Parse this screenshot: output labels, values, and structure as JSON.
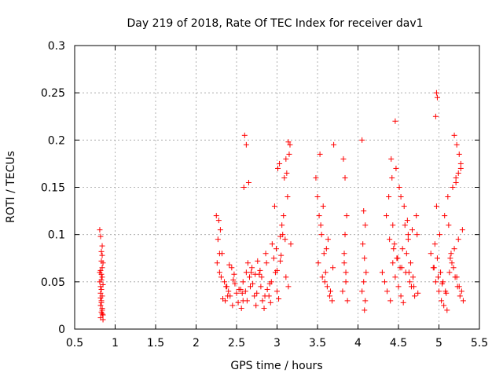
{
  "chart_data": {
    "type": "scatter",
    "title": "Day 219 of 2018, Rate Of TEC Index for receiver dav1",
    "xlabel": "GPS time / hours",
    "ylabel": "ROTI / TECUs",
    "xlim": [
      0.5,
      5.5
    ],
    "ylim": [
      0,
      0.3
    ],
    "xticks": [
      0.5,
      1,
      1.5,
      2,
      2.5,
      3,
      3.5,
      4,
      4.5,
      5,
      5.5
    ],
    "xtick_labels": [
      "0.5",
      "1",
      "1.5",
      "2",
      "2.5",
      "3",
      "3.5",
      "4",
      "4.5",
      "5",
      "5.5"
    ],
    "yticks": [
      0,
      0.05,
      0.1,
      0.15,
      0.2,
      0.25,
      0.3
    ],
    "ytick_labels": [
      "0",
      "0.05",
      "0.1",
      "0.15",
      "0.2",
      "0.25",
      "0.3"
    ],
    "grid": true,
    "marker": "+",
    "color": "#ff0000",
    "series": [
      {
        "name": "ROTI",
        "x": [
          0.81,
          0.82,
          0.83,
          0.84,
          0.85,
          0.82,
          0.83,
          0.84,
          0.81,
          0.85,
          0.83,
          0.82,
          0.84,
          0.83,
          0.82,
          0.84,
          0.83,
          0.85,
          0.82,
          0.84,
          0.83,
          0.81,
          0.84,
          0.82,
          0.83,
          0.85,
          0.84,
          0.83,
          0.82,
          0.84,
          2.25,
          2.28,
          2.3,
          2.27,
          2.32,
          2.26,
          2.29,
          2.31,
          2.35,
          2.38,
          2.4,
          2.42,
          2.36,
          2.45,
          2.44,
          2.48,
          2.5,
          2.52,
          2.47,
          2.55,
          2.58,
          2.56,
          2.6,
          2.62,
          2.59,
          2.64,
          2.66,
          2.61,
          2.63,
          2.68,
          2.7,
          2.72,
          2.74,
          2.69,
          2.76,
          2.78,
          2.8,
          2.75,
          2.82,
          2.84,
          2.86,
          2.81,
          2.88,
          2.9,
          2.92,
          2.87,
          2.94,
          2.96,
          2.98,
          2.93,
          3.0,
          3.02,
          3.04,
          2.99,
          3.06,
          3.08,
          3.1,
          3.05,
          3.12,
          3.14,
          3.16,
          3.11,
          3.13,
          3.09,
          3.15,
          3.01,
          3.03,
          2.97,
          2.91,
          2.85,
          2.79,
          2.73,
          2.67,
          2.57,
          2.53,
          2.46,
          2.41,
          2.37,
          2.33,
          2.29,
          2.62,
          2.65,
          2.58,
          2.39,
          3.07,
          3.17,
          3.0,
          3.04,
          3.11,
          3.14,
          3.48,
          3.5,
          3.52,
          3.55,
          3.58,
          3.6,
          3.62,
          3.65,
          3.68,
          3.7,
          3.53,
          3.57,
          3.63,
          3.51,
          3.59,
          3.66,
          3.54,
          3.61,
          3.69,
          3.56,
          3.82,
          3.84,
          3.86,
          3.83,
          3.85,
          3.81,
          3.87,
          3.84,
          3.83,
          3.85,
          4.05,
          4.07,
          4.09,
          4.06,
          4.08,
          4.1,
          4.07,
          4.05,
          4.09,
          4.08,
          4.3,
          4.33,
          4.36,
          4.4,
          4.43,
          4.46,
          4.5,
          4.53,
          4.56,
          4.6,
          4.63,
          4.66,
          4.7,
          4.73,
          4.35,
          4.38,
          4.42,
          4.45,
          4.48,
          4.52,
          4.55,
          4.58,
          4.62,
          4.65,
          4.68,
          4.72,
          4.41,
          4.47,
          4.51,
          4.57,
          4.61,
          4.67,
          4.39,
          4.44,
          4.49,
          4.54,
          4.59,
          4.64,
          4.69,
          4.74,
          4.46,
          4.53,
          4.43,
          4.62,
          4.9,
          4.93,
          4.96,
          5.0,
          5.03,
          5.06,
          5.1,
          5.13,
          5.16,
          5.2,
          5.23,
          5.26,
          5.3,
          4.95,
          4.98,
          5.02,
          5.05,
          5.08,
          5.12,
          5.15,
          5.18,
          5.22,
          5.25,
          5.28,
          4.97,
          5.01,
          5.07,
          5.11,
          5.17,
          5.21,
          5.27,
          4.94,
          4.99,
          5.04,
          5.09,
          5.14,
          5.19,
          5.24,
          5.29,
          4.97,
          4.98,
          4.96,
          5.19,
          5.22,
          5.25,
          5.27,
          5.21,
          5.24
        ],
        "y": [
          0.105,
          0.098,
          0.082,
          0.078,
          0.07,
          0.062,
          0.058,
          0.055,
          0.05,
          0.047,
          0.042,
          0.038,
          0.035,
          0.03,
          0.025,
          0.022,
          0.018,
          0.015,
          0.012,
          0.02,
          0.028,
          0.06,
          0.065,
          0.045,
          0.052,
          0.01,
          0.088,
          0.072,
          0.033,
          0.016,
          0.12,
          0.115,
          0.105,
          0.095,
          0.08,
          0.07,
          0.06,
          0.055,
          0.05,
          0.045,
          0.04,
          0.035,
          0.03,
          0.025,
          0.065,
          0.048,
          0.038,
          0.028,
          0.058,
          0.042,
          0.03,
          0.022,
          0.205,
          0.195,
          0.15,
          0.07,
          0.055,
          0.04,
          0.03,
          0.06,
          0.048,
          0.035,
          0.025,
          0.065,
          0.072,
          0.058,
          0.045,
          0.038,
          0.03,
          0.022,
          0.08,
          0.055,
          0.042,
          0.035,
          0.028,
          0.07,
          0.09,
          0.075,
          0.06,
          0.05,
          0.04,
          0.032,
          0.098,
          0.085,
          0.11,
          0.12,
          0.095,
          0.078,
          0.165,
          0.198,
          0.195,
          0.18,
          0.14,
          0.16,
          0.185,
          0.17,
          0.175,
          0.13,
          0.048,
          0.035,
          0.062,
          0.058,
          0.045,
          0.038,
          0.042,
          0.052,
          0.068,
          0.045,
          0.032,
          0.08,
          0.06,
          0.155,
          0.05,
          0.035,
          0.1,
          0.09,
          0.062,
          0.072,
          0.055,
          0.045,
          0.16,
          0.14,
          0.12,
          0.1,
          0.08,
          0.06,
          0.045,
          0.035,
          0.03,
          0.195,
          0.185,
          0.13,
          0.095,
          0.07,
          0.05,
          0.04,
          0.11,
          0.085,
          0.065,
          0.055,
          0.18,
          0.16,
          0.12,
          0.08,
          0.06,
          0.04,
          0.03,
          0.1,
          0.07,
          0.05,
          0.2,
          0.125,
          0.11,
          0.09,
          0.075,
          0.06,
          0.05,
          0.04,
          0.03,
          0.02,
          0.06,
          0.05,
          0.04,
          0.03,
          0.07,
          0.055,
          0.045,
          0.035,
          0.028,
          0.08,
          0.06,
          0.045,
          0.035,
          0.1,
          0.12,
          0.14,
          0.16,
          0.09,
          0.075,
          0.065,
          0.085,
          0.11,
          0.095,
          0.07,
          0.055,
          0.12,
          0.18,
          0.17,
          0.15,
          0.13,
          0.115,
          0.105,
          0.095,
          0.085,
          0.075,
          0.065,
          0.06,
          0.05,
          0.045,
          0.038,
          0.22,
          0.14,
          0.11,
          0.1,
          0.08,
          0.065,
          0.05,
          0.04,
          0.03,
          0.025,
          0.02,
          0.06,
          0.07,
          0.055,
          0.045,
          0.035,
          0.03,
          0.09,
          0.075,
          0.06,
          0.05,
          0.04,
          0.11,
          0.08,
          0.065,
          0.055,
          0.045,
          0.04,
          0.13,
          0.1,
          0.12,
          0.14,
          0.15,
          0.16,
          0.17,
          0.065,
          0.055,
          0.048,
          0.038,
          0.075,
          0.085,
          0.095,
          0.105,
          0.25,
          0.245,
          0.225,
          0.205,
          0.195,
          0.185,
          0.175,
          0.155,
          0.165
        ]
      }
    ]
  }
}
